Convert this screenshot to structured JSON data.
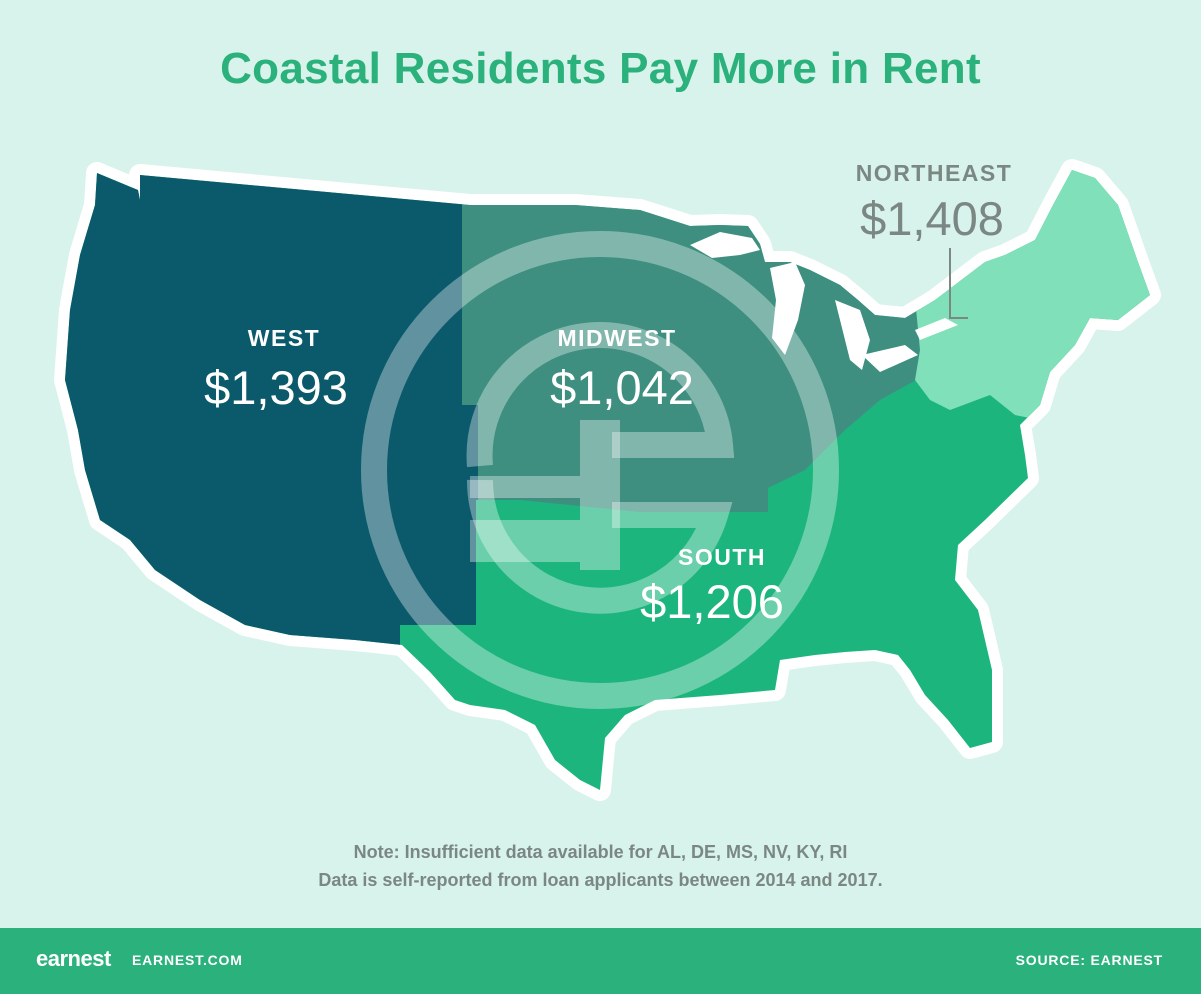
{
  "title": "Coastal Residents Pay More in Rent",
  "regions": [
    {
      "id": "west",
      "name": "WEST",
      "value": "$1,393",
      "color": "#0b5a6c"
    },
    {
      "id": "midwest",
      "name": "MIDWEST",
      "value": "$1,042",
      "color": "#3e8f80"
    },
    {
      "id": "south",
      "name": "SOUTH",
      "value": "$1,206",
      "color": "#1db57e"
    },
    {
      "id": "northeast",
      "name": "NORTHEAST",
      "value": "$1,408",
      "color": "#7fe0ba"
    }
  ],
  "note_line1": "Note: Insufficient data available for AL, DE, MS, NV, KY, RI",
  "note_line2": "Data is self-reported from loan applicants between 2014 and 2017.",
  "footer": {
    "logo": "earnest",
    "site": "EARNEST.COM",
    "source": "SOURCE: EARNEST",
    "color": "#2bb17b"
  }
}
